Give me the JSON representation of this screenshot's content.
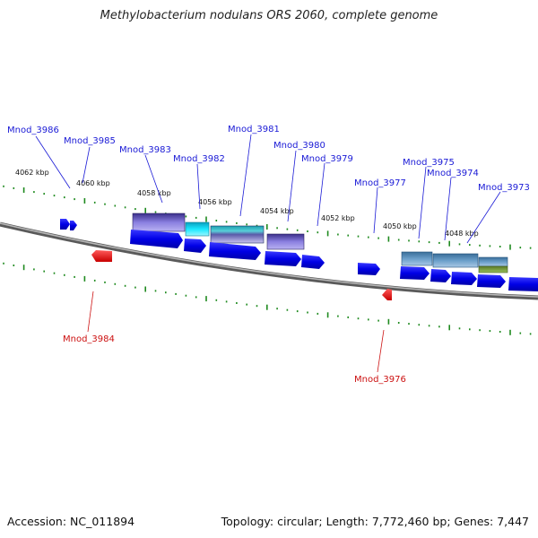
{
  "title": "Methylobacterium nodulans ORS 2060, complete genome",
  "accession_text": "Accession: NC_011894",
  "summary_text": "Topology: circular; Length: 7,772,460 bp; Genes: 7,447",
  "kbp_labels": [
    "4062 kbp",
    "4060 kbp",
    "4058 kbp",
    "4056 kbp",
    "4054 kbp",
    "4052 kbp",
    "4050 kbp",
    "4048 kbp"
  ],
  "gene_labels_forward": [
    "Mnod_3986",
    "Mnod_3985",
    "Mnod_3983",
    "Mnod_3982",
    "Mnod_3981",
    "Mnod_3980",
    "Mnod_3979",
    "Mnod_3977",
    "Mnod_3975",
    "Mnod_3974",
    "Mnod_3973"
  ],
  "gene_labels_reverse": [
    "Mnod_3984",
    "Mnod_3976"
  ],
  "colors": {
    "forward_gene": "#0000ee",
    "reverse_gene": "#ee1111",
    "label_forward": "#1a1ad6",
    "label_reverse": "#cc1111",
    "backbone": "#808080",
    "tick": "#1f8a1f"
  }
}
